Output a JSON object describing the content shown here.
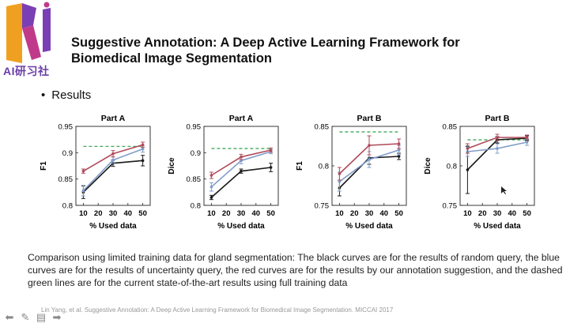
{
  "logo": {
    "text": "AI研习社",
    "colors": [
      "#f0a020",
      "#7b3fb5",
      "#c03a8a"
    ]
  },
  "slide": {
    "title_line1": "Suggestive Annotation: A Deep Active Learning Framework for",
    "title_line2": "Biomedical Image Segmentation",
    "bullet": "Results",
    "caption": "Comparison using limited training data for gland segmentation: The black curves are for the results of random query, the blue curves are for the results of uncertainty query, the red curves are for the results by our annotation suggestion, and the dashed green lines are for the current state-of-the-art results using full training data",
    "footer": "Lin Yang, et al. Suggestive Annotation: A Deep Active Learning Framework for Biomedical Image Segmentation. MICCAI 2017"
  },
  "colors": {
    "black": "#1a1a1a",
    "blue": "#7f9cc8",
    "red": "#b04a5a",
    "green": "#2fa04a"
  },
  "toolbar": {
    "icons": [
      "back-arrow-icon",
      "pen-icon",
      "slides-icon",
      "forward-arrow-icon"
    ]
  },
  "chart_data": [
    {
      "type": "line",
      "title": "Part A",
      "xlabel": "% Used data",
      "ylabel": "F1",
      "x": [
        10,
        30,
        50
      ],
      "xticks": [
        10,
        20,
        30,
        40,
        50
      ],
      "ylim": [
        0.8,
        0.95
      ],
      "yticks": [
        "0.8",
        "0.85",
        "0.9",
        "0.95"
      ],
      "series": [
        {
          "color": "black",
          "values": [
            0.825,
            0.88,
            0.885
          ],
          "err": [
            0.012,
            0.006,
            0.01
          ]
        },
        {
          "color": "blue",
          "values": [
            0.828,
            0.886,
            0.907
          ],
          "err": [
            0.01,
            0.006,
            0.006
          ]
        },
        {
          "color": "red",
          "values": [
            0.865,
            0.898,
            0.915
          ],
          "err": [
            0.004,
            0.006,
            0.005
          ]
        }
      ],
      "baseline": 0.912
    },
    {
      "type": "line",
      "title": "Part A",
      "xlabel": "% Used data",
      "ylabel": "Dice",
      "x": [
        10,
        30,
        50
      ],
      "xticks": [
        10,
        20,
        30,
        40,
        50
      ],
      "ylim": [
        0.8,
        0.95
      ],
      "yticks": [
        "0.8",
        "0.85",
        "0.9",
        "0.95"
      ],
      "series": [
        {
          "color": "black",
          "values": [
            0.815,
            0.865,
            0.872
          ],
          "err": [
            0.004,
            0.004,
            0.008
          ]
        },
        {
          "color": "blue",
          "values": [
            0.835,
            0.885,
            0.902
          ],
          "err": [
            0.008,
            0.006,
            0.004
          ]
        },
        {
          "color": "red",
          "values": [
            0.857,
            0.892,
            0.905
          ],
          "err": [
            0.006,
            0.005,
            0.004
          ]
        }
      ],
      "baseline": 0.908
    },
    {
      "type": "line",
      "title": "Part B",
      "xlabel": "% Used data",
      "ylabel": "F1",
      "x": [
        10,
        30,
        50
      ],
      "xticks": [
        10,
        20,
        30,
        40,
        50
      ],
      "ylim": [
        0.75,
        0.85
      ],
      "yticks": [
        "0.75",
        "0.8",
        "0.85"
      ],
      "series": [
        {
          "color": "black",
          "values": [
            0.772,
            0.81,
            0.812
          ],
          "err": [
            0.01,
            0.008,
            0.004
          ]
        },
        {
          "color": "blue",
          "values": [
            0.78,
            0.808,
            0.82
          ],
          "err": [
            0.012,
            0.01,
            0.006
          ]
        },
        {
          "color": "red",
          "values": [
            0.79,
            0.826,
            0.828
          ],
          "err": [
            0.008,
            0.012,
            0.006
          ]
        }
      ],
      "baseline": 0.843
    },
    {
      "type": "line",
      "title": "Part B",
      "xlabel": "% Used data",
      "ylabel": "Dice",
      "x": [
        10,
        30,
        50
      ],
      "xticks": [
        10,
        20,
        30,
        40,
        50
      ],
      "ylim": [
        0.75,
        0.85
      ],
      "yticks": [
        "0.75",
        "0.8",
        "0.85"
      ],
      "series": [
        {
          "color": "black",
          "values": [
            0.795,
            0.833,
            0.835
          ],
          "err": [
            0.03,
            0.004,
            0.003
          ]
        },
        {
          "color": "blue",
          "values": [
            0.818,
            0.822,
            0.83
          ],
          "err": [
            0.006,
            0.006,
            0.004
          ]
        },
        {
          "color": "red",
          "values": [
            0.822,
            0.836,
            0.836
          ],
          "err": [
            0.006,
            0.004,
            0.003
          ]
        }
      ],
      "baseline": 0.833
    }
  ]
}
